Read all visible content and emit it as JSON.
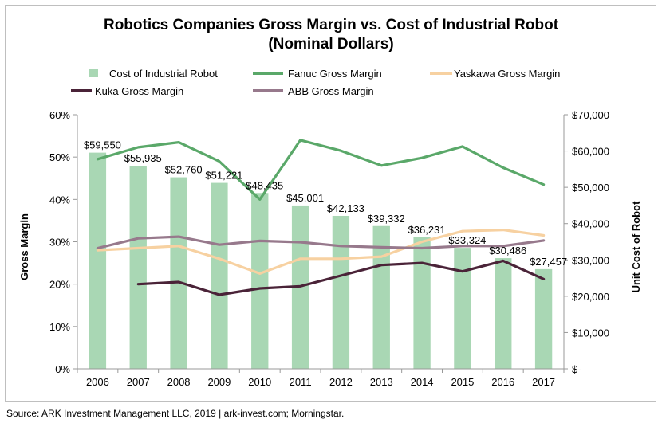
{
  "chart_data": {
    "type": "bar+line",
    "title_lines": [
      "Robotics Companies Gross Margin vs. Cost of Industrial Robot",
      "(Nominal Dollars)"
    ],
    "categories": [
      "2006",
      "2007",
      "2008",
      "2009",
      "2010",
      "2011",
      "2012",
      "2013",
      "2014",
      "2015",
      "2016",
      "2017"
    ],
    "bar_series": {
      "name": "Cost of Industrial Robot",
      "axis": "right",
      "values": [
        59550,
        55935,
        52760,
        51221,
        48435,
        45001,
        42133,
        39332,
        36231,
        33324,
        30486,
        27457
      ],
      "data_labels": [
        "$59,550",
        "$55,935",
        "$52,760",
        "$51,221",
        "$48,435",
        "$45,001",
        "$42,133",
        "$39,332",
        "$36,231",
        "$33,324",
        "$30,486",
        "$27,457"
      ]
    },
    "line_series": [
      {
        "name": "Fanuc Gross Margin",
        "axis": "left",
        "values": [
          49.5,
          52.3,
          53.5,
          49.0,
          40.0,
          54.0,
          51.5,
          48.0,
          49.8,
          52.5,
          47.5,
          43.5
        ]
      },
      {
        "name": "Yaskawa Gross Margin",
        "axis": "left",
        "values": [
          28.0,
          28.5,
          29.0,
          26.0,
          22.5,
          26.0,
          26.0,
          26.5,
          30.0,
          32.5,
          32.8,
          31.5
        ]
      },
      {
        "name": "Kuka Gross Margin",
        "axis": "left",
        "values": [
          null,
          20.0,
          20.5,
          17.5,
          19.0,
          19.5,
          22.0,
          24.5,
          25.0,
          23.0,
          25.5,
          21.2
        ]
      },
      {
        "name": "ABB Gross Margin",
        "axis": "left",
        "values": [
          28.5,
          30.8,
          31.2,
          29.3,
          30.2,
          29.9,
          29.0,
          28.7,
          28.5,
          29.0,
          29.0,
          30.3
        ]
      }
    ],
    "y_left": {
      "label": "Gross Margin",
      "range": [
        0,
        60
      ],
      "tick_values": [
        0,
        10,
        20,
        30,
        40,
        50,
        60
      ],
      "tick_labels": [
        "0%",
        "10%",
        "20%",
        "30%",
        "40%",
        "50%",
        "60%"
      ]
    },
    "y_right": {
      "label": "Unit Cost of Robot",
      "range": [
        0,
        70000
      ],
      "tick_values": [
        0,
        10000,
        20000,
        30000,
        40000,
        50000,
        60000,
        70000
      ],
      "tick_labels": [
        "$-",
        "$10,000",
        "$20,000",
        "$30,000",
        "$40,000",
        "$50,000",
        "$60,000",
        "$70,000"
      ]
    },
    "grid": false,
    "legend_position": "top",
    "colors": {
      "bar": "#a9d7b4",
      "fanuc": "#5aa869",
      "yaskawa": "#f7d1a1",
      "kuka": "#4a2338",
      "abb": "#97798c",
      "axis": "#999999"
    }
  },
  "source": "Source: ARK Investment Management LLC, 2019 | ark-invest.com; Morningstar."
}
